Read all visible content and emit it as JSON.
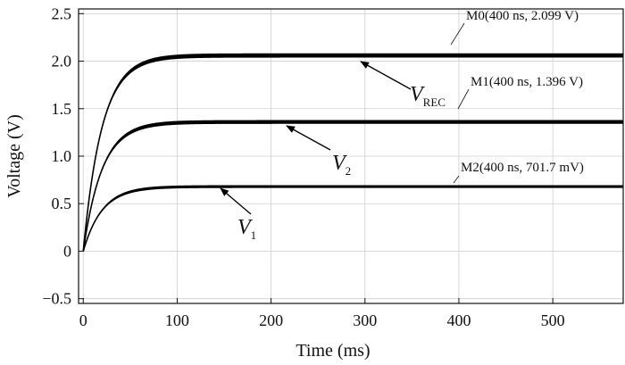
{
  "chart_data": {
    "type": "line",
    "title": "",
    "xlabel": "Time (ms)",
    "ylabel": "Voltage (V)",
    "xlim": [
      -5,
      575
    ],
    "ylim": [
      -0.55,
      2.55
    ],
    "xticks": [
      0,
      100,
      200,
      300,
      400,
      500
    ],
    "xtick_labels": [
      "0",
      "100",
      "200",
      "300",
      "400",
      "500"
    ],
    "yticks": [
      -0.5,
      0,
      0.5,
      1.0,
      1.5,
      2.0,
      2.5
    ],
    "ytick_labels": [
      "−0.5",
      "0",
      "0.5",
      "1.0",
      "1.5",
      "2.0",
      "2.5"
    ],
    "grid": true,
    "series": [
      {
        "name": "V_REC",
        "main": "V",
        "sub": "REC",
        "final": 2.06,
        "tau": 20,
        "ripple": 0.045
      },
      {
        "name": "V_2",
        "main": "V",
        "sub": "2",
        "final": 1.36,
        "tau": 20,
        "ripple": 0.04
      },
      {
        "name": "V_1",
        "main": "V",
        "sub": "1",
        "final": 0.68,
        "tau": 20,
        "ripple": 0.03
      }
    ],
    "markers": [
      {
        "label": "M0(400 ns, 2.099 V)"
      },
      {
        "label": "M1(400 ns, 1.396 V)"
      },
      {
        "label": "M2(400 ns, 701.7 mV)"
      }
    ]
  }
}
